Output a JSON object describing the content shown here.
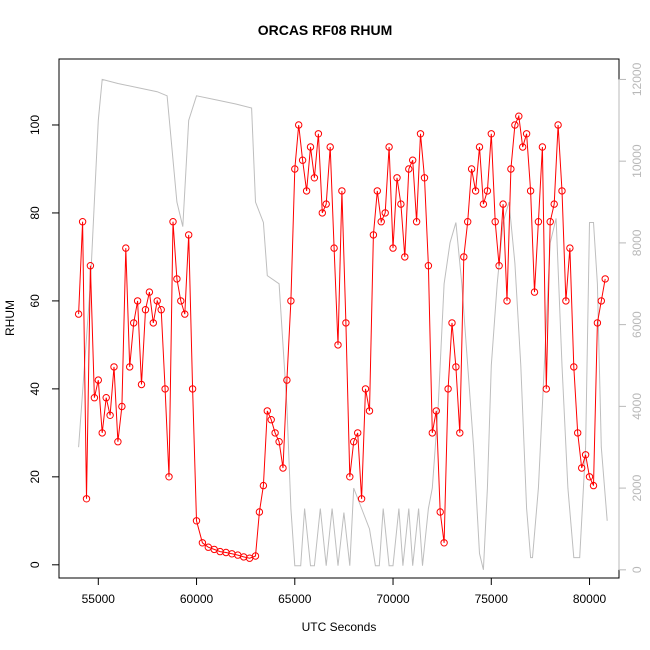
{
  "chart_data": {
    "type": "scatter",
    "title": "ORCAS RF08 RHUM",
    "xlabel": "UTC Seconds",
    "ylabel": "RHUM",
    "xlim": [
      53000,
      81500
    ],
    "ylim": [
      -3,
      115
    ],
    "y2lim": [
      -200,
      12500
    ],
    "x_ticks": [
      55000,
      60000,
      65000,
      70000,
      75000,
      80000
    ],
    "y_ticks": [
      0,
      20,
      40,
      60,
      80,
      100
    ],
    "y2_ticks": [
      0,
      2000,
      4000,
      6000,
      8000,
      10000,
      12000
    ],
    "grid": false,
    "series": [
      {
        "role": "primary",
        "axis": "left",
        "style": "points-and-lines",
        "color": "#ff0000",
        "x": [
          54000,
          54200,
          54400,
          54600,
          54800,
          55000,
          55200,
          55400,
          55600,
          55800,
          56000,
          56200,
          56400,
          56600,
          56800,
          57000,
          57200,
          57400,
          57600,
          57800,
          58000,
          58200,
          58400,
          58600,
          58800,
          59000,
          59200,
          59400,
          59600,
          59800,
          60000,
          60300,
          60600,
          60900,
          61200,
          61500,
          61800,
          62100,
          62400,
          62700,
          63000,
          63200,
          63400,
          63600,
          63800,
          64000,
          64200,
          64400,
          64600,
          64800,
          65000,
          65200,
          65400,
          65600,
          65800,
          66000,
          66200,
          66400,
          66600,
          66800,
          67000,
          67200,
          67400,
          67600,
          67800,
          68000,
          68200,
          68400,
          68600,
          68800,
          69000,
          69200,
          69400,
          69600,
          69800,
          70000,
          70200,
          70400,
          70600,
          70800,
          71000,
          71200,
          71400,
          71600,
          71800,
          72000,
          72200,
          72400,
          72600,
          72800,
          73000,
          73200,
          73400,
          73600,
          73800,
          74000,
          74200,
          74400,
          74600,
          74800,
          75000,
          75200,
          75400,
          75600,
          75800,
          76000,
          76200,
          76400,
          76600,
          76800,
          77000,
          77200,
          77400,
          77600,
          77800,
          78000,
          78200,
          78400,
          78600,
          78800,
          79000,
          79200,
          79400,
          79600,
          79800,
          80000,
          80200,
          80400,
          80600,
          80800
        ],
        "y": [
          57,
          78,
          15,
          68,
          38,
          42,
          30,
          38,
          34,
          45,
          28,
          36,
          72,
          45,
          55,
          60,
          41,
          58,
          62,
          55,
          60,
          58,
          40,
          20,
          78,
          65,
          60,
          57,
          75,
          40,
          10,
          5,
          4,
          3.5,
          3,
          2.8,
          2.5,
          2.2,
          1.8,
          1.5,
          2,
          12,
          18,
          35,
          33,
          30,
          28,
          22,
          42,
          60,
          90,
          100,
          92,
          85,
          95,
          88,
          98,
          80,
          82,
          95,
          72,
          50,
          85,
          55,
          20,
          28,
          30,
          15,
          40,
          35,
          75,
          85,
          78,
          80,
          95,
          72,
          88,
          82,
          70,
          90,
          92,
          78,
          98,
          88,
          68,
          30,
          35,
          12,
          5,
          40,
          55,
          45,
          30,
          70,
          78,
          90,
          85,
          95,
          82,
          85,
          98,
          78,
          68,
          82,
          60,
          90,
          100,
          102,
          95,
          98,
          85,
          62,
          78,
          95,
          40,
          78,
          82,
          100,
          85,
          60,
          72,
          45,
          30,
          22,
          25,
          20,
          18,
          55,
          60,
          65
        ],
        "name": ""
      },
      {
        "role": "secondary",
        "axis": "right",
        "style": "line",
        "color": "#bebebe",
        "x": [
          54000,
          54600,
          55000,
          55200,
          56000,
          57000,
          58000,
          58500,
          59000,
          59300,
          59600,
          60000,
          61000,
          62000,
          62800,
          63000,
          63400,
          63600,
          64200,
          64600,
          64800,
          65000,
          65300,
          65500,
          65800,
          66000,
          66300,
          66600,
          66900,
          67200,
          67500,
          67800,
          68000,
          68400,
          68800,
          69100,
          69300,
          69500,
          69800,
          70000,
          70300,
          70500,
          70800,
          71000,
          71300,
          71500,
          71800,
          72000,
          72300,
          72600,
          72900,
          73200,
          73500,
          73800,
          74100,
          74400,
          74600,
          74800,
          75000,
          75300,
          75600,
          75900,
          76200,
          76500,
          76800,
          77000,
          77100,
          77400,
          77700,
          78000,
          78300,
          78600,
          78900,
          79200,
          79500,
          79800,
          80000,
          80200,
          80400,
          80600,
          80900
        ],
        "y": [
          3000,
          7000,
          11000,
          12000,
          11900,
          11800,
          11700,
          11600,
          9000,
          8400,
          11000,
          11600,
          11500,
          11400,
          11300,
          9000,
          8500,
          7200,
          7000,
          4000,
          1500,
          100,
          100,
          1500,
          100,
          100,
          1500,
          100,
          1500,
          100,
          1400,
          100,
          2000,
          1500,
          1000,
          100,
          100,
          1500,
          100,
          100,
          1500,
          100,
          1500,
          100,
          1500,
          100,
          1500,
          2000,
          4000,
          7000,
          8000,
          8500,
          7000,
          5000,
          3000,
          400,
          0,
          2000,
          5000,
          7000,
          8500,
          9000,
          7500,
          5000,
          1500,
          300,
          300,
          2000,
          5000,
          8000,
          8600,
          5000,
          2000,
          300,
          300,
          3000,
          8500,
          8500,
          7000,
          3000,
          1200
        ],
        "name": ""
      }
    ]
  }
}
